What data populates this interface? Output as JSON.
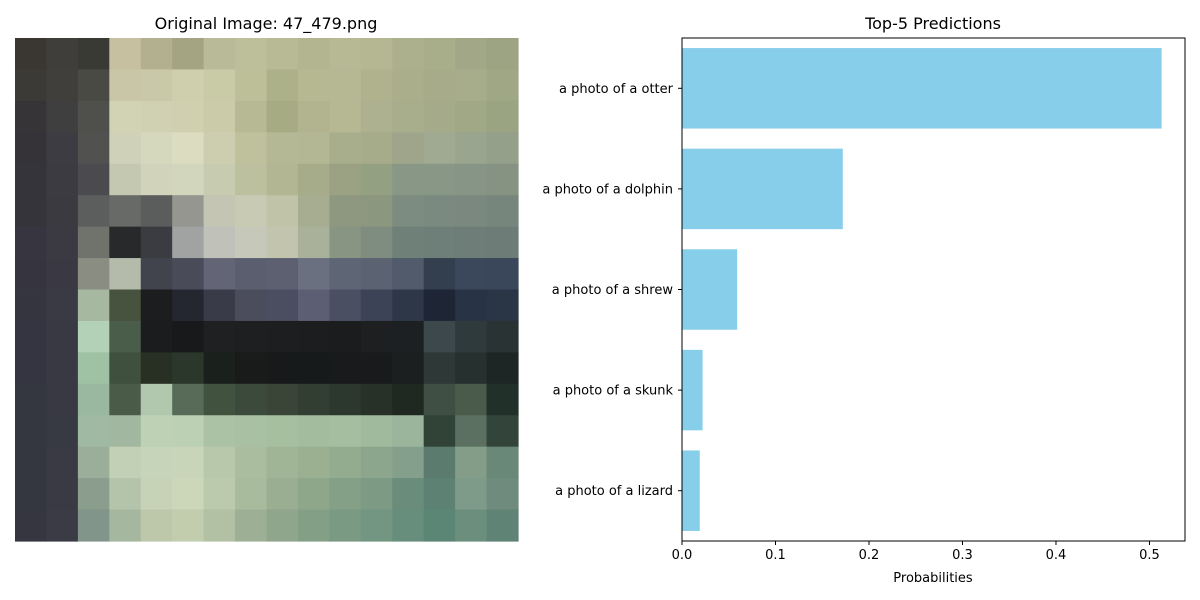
{
  "image_panel": {
    "title": "Original Image: 47_479.png",
    "grid_rows": 16,
    "grid_cols": 16,
    "pixels": [
      [
        "#3a3631",
        "#403e3a",
        "#3a3a35",
        "#c7c0a0",
        "#b2b08e",
        "#a4a482",
        "#b9bb98",
        "#bdbf9b",
        "#b8ba96",
        "#b2b590",
        "#b6b994",
        "#b4b792",
        "#adb08c",
        "#a8ad8a",
        "#a2a887",
        "#9ca484"
      ],
      [
        "#3b3a37",
        "#403f3c",
        "#4a4a45",
        "#c8c6a7",
        "#c9c8a9",
        "#cfcfad",
        "#c9caa6",
        "#bdbf98",
        "#adb18a",
        "#b6b892",
        "#b5b893",
        "#b0b28e",
        "#aaae8a",
        "#a7ab89",
        "#a7ac8b",
        "#a0a785"
      ],
      [
        "#363437",
        "#403f40",
        "#4f4f4b",
        "#d2d2b5",
        "#d0d0b2",
        "#d0d0b0",
        "#cbcba9",
        "#b7b994",
        "#a6ab84",
        "#b1b48e",
        "#b5b893",
        "#aeb18f",
        "#a8ad8b",
        "#a5ab8a",
        "#a1a886",
        "#9aa483"
      ],
      [
        "#353338",
        "#3d3c42",
        "#51514f",
        "#cfd1b8",
        "#d6d8be",
        "#dcdcc0",
        "#cdceaf",
        "#bfc19c",
        "#b4b895",
        "#b3b794",
        "#a8ae8c",
        "#a6ab8a",
        "#9fa58a",
        "#a0a992",
        "#9aa58f",
        "#94a08a"
      ],
      [
        "#35343a",
        "#3c3b42",
        "#4b4b4f",
        "#c4c8b0",
        "#d1d4bb",
        "#d2d6bc",
        "#c7cbb0",
        "#bcc09f",
        "#b2b693",
        "#a6ac8a",
        "#9aa283",
        "#93a081",
        "#899886",
        "#889786",
        "#879586",
        "#869383"
      ],
      [
        "#36343b",
        "#3b3a41",
        "#5c5e5e",
        "#686a67",
        "#5b5d5c",
        "#94968f",
        "#c4c6b3",
        "#c8cab3",
        "#c0c3a7",
        "#a7ad90",
        "#8e9880",
        "#8c977f",
        "#7d8c80",
        "#7b8a80",
        "#7a887f",
        "#77867d"
      ],
      [
        "#373540",
        "#3b3a42",
        "#70726c",
        "#27292a",
        "#3a3c42",
        "#a1a3a3",
        "#c0c2b9",
        "#c6c8b9",
        "#c2c4ae",
        "#aab19b",
        "#889583",
        "#7e8d80",
        "#6f8079",
        "#6e7e78",
        "#6e7d77",
        "#6d7c76"
      ],
      [
        "#36353f",
        "#3a3943",
        "#8a8e82",
        "#b4bbab",
        "#41444d",
        "#4a4b58",
        "#636576",
        "#5b5e6e",
        "#5c6070",
        "#6b7080",
        "#5e6675",
        "#5b6372",
        "#515b6b",
        "#333e4e",
        "#3b475b",
        "#3a4659"
      ],
      [
        "#353540",
        "#3a3a44",
        "#a6b8a0",
        "#47523f",
        "#1b1d1f",
        "#252730",
        "#393b49",
        "#4b4d5d",
        "#4b4e60",
        "#5c5f73",
        "#4a4f62",
        "#3d4356",
        "#2e3748",
        "#1e2535",
        "#283345",
        "#2a3546"
      ],
      [
        "#343541",
        "#393943",
        "#b2d1b6",
        "#4a5d4a",
        "#1a1c1e",
        "#17191a",
        "#1f2021",
        "#1d1f21",
        "#1c1e20",
        "#1b1d1f",
        "#1b1c1e",
        "#1d1f21",
        "#1d2022",
        "#3c484b",
        "#2e3a3c",
        "#2a3334"
      ],
      [
        "#343540",
        "#383943",
        "#a0c2a4",
        "#3f503e",
        "#273023",
        "#2c372c",
        "#1a211c",
        "#181b1a",
        "#17191a",
        "#171a1b",
        "#181a1b",
        "#181a1c",
        "#1b1f20",
        "#2e3836",
        "#26302e",
        "#1e2625"
      ],
      [
        "#343640",
        "#383943",
        "#9ab89f",
        "#4a5b48",
        "#b2c8ae",
        "#586b58",
        "#41523f",
        "#3c4a3b",
        "#3a4538",
        "#333e33",
        "#2c372d",
        "#273128",
        "#1f2821",
        "#3f4f43",
        "#4a5a4b",
        "#22302a"
      ],
      [
        "#343640",
        "#383a43",
        "#9fb9a2",
        "#a1b79f",
        "#bed1b5",
        "#bcd0b3",
        "#abc2a4",
        "#a9c1a2",
        "#a6bf9f",
        "#a3bc9e",
        "#a4be9f",
        "#a0ba9d",
        "#9ab59c",
        "#314236",
        "#5b7061",
        "#33453a"
      ],
      [
        "#343640",
        "#393a43",
        "#9aae9a",
        "#c2d0b6",
        "#c6d4ba",
        "#c8d5b8",
        "#b8c9ab",
        "#aabd9f",
        "#a0b596",
        "#9ab091",
        "#93ab8e",
        "#8ca68d",
        "#849f8b",
        "#5a7b6e",
        "#849d89",
        "#6a8878"
      ],
      [
        "#343640",
        "#393a43",
        "#8b9d8d",
        "#b4c4ab",
        "#c7d3b6",
        "#cbd7b8",
        "#bbcaac",
        "#a8bb9c",
        "#9aaf91",
        "#8ea68a",
        "#84a086",
        "#7c9a84",
        "#6a8c7b",
        "#5d8273",
        "#7e9b89",
        "#6e8b7d"
      ],
      [
        "#353640",
        "#3a3b44",
        "#82958a",
        "#a6b79f",
        "#bcc8a9",
        "#c2cdae",
        "#b2c1a3",
        "#9db096",
        "#8fa58c",
        "#83a086",
        "#7a9a84",
        "#739682",
        "#678e7c",
        "#5b8675",
        "#6b8e7d",
        "#5f8375"
      ]
    ]
  },
  "chart_data": {
    "type": "bar",
    "orientation": "horizontal",
    "title": "Top-5 Predictions",
    "xlabel": "Probabilities",
    "ylabel": "",
    "categories": [
      "a photo of a otter",
      "a photo of a dolphin",
      "a photo of a shrew",
      "a photo of a skunk",
      "a photo of a lizard"
    ],
    "values": [
      0.513,
      0.172,
      0.059,
      0.022,
      0.019
    ],
    "xlim": [
      0,
      0.538
    ],
    "xticks": [
      0.0,
      0.1,
      0.2,
      0.3,
      0.4,
      0.5
    ],
    "xtick_labels": [
      "0.0",
      "0.1",
      "0.2",
      "0.3",
      "0.4",
      "0.5"
    ],
    "bar_color": "#87ceeb",
    "grid": false
  }
}
